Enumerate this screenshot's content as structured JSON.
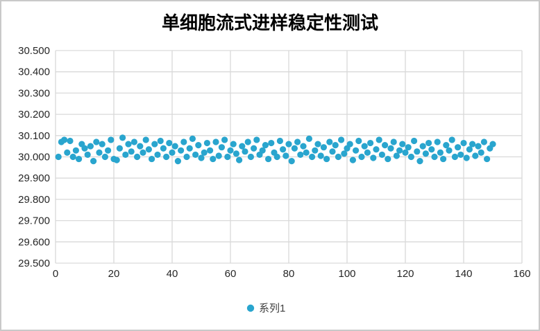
{
  "colors": {
    "point": "#29a5ce",
    "grid": "#d9d9d9",
    "frame_border": "#c9c9c9",
    "tick_text": "#262626",
    "title_text": "#000000",
    "legend_text": "#404040"
  },
  "chart_data": {
    "type": "scatter",
    "title": "单细胞流式进样稳定性测试",
    "xlabel": "",
    "ylabel": "",
    "xlim": [
      0,
      160
    ],
    "ylim": [
      29.5,
      30.5
    ],
    "x_ticks": [
      0,
      20,
      40,
      60,
      80,
      100,
      120,
      140,
      160
    ],
    "y_ticks": [
      29.5,
      29.6,
      29.7,
      29.8,
      29.9,
      30.0,
      30.1,
      30.2,
      30.3,
      30.4,
      30.5
    ],
    "y_tick_labels": [
      "29.500",
      "29.600",
      "29.700",
      "29.800",
      "29.900",
      "30.000",
      "30.100",
      "30.200",
      "30.300",
      "30.400",
      "30.500"
    ],
    "grid": "both",
    "legend_position": "bottom",
    "series": [
      {
        "name": "系列1",
        "x_start": 1,
        "x_step": 1,
        "y": [
          30.0,
          30.07,
          30.08,
          30.02,
          30.075,
          30.0,
          30.03,
          29.99,
          30.06,
          30.04,
          30.01,
          30.05,
          29.98,
          30.07,
          30.02,
          30.06,
          30.0,
          30.03,
          30.08,
          29.99,
          29.985,
          30.04,
          30.09,
          30.01,
          30.06,
          30.025,
          30.07,
          30.0,
          30.05,
          30.02,
          30.08,
          30.035,
          29.99,
          30.06,
          30.01,
          30.075,
          30.04,
          30.0,
          30.065,
          30.02,
          30.05,
          29.98,
          30.03,
          30.07,
          30.0,
          30.04,
          30.085,
          30.01,
          30.055,
          29.995,
          30.02,
          30.065,
          30.03,
          29.99,
          30.07,
          30.005,
          30.045,
          30.08,
          30.0,
          30.03,
          30.06,
          30.015,
          29.985,
          30.05,
          30.025,
          30.07,
          30.0,
          30.04,
          30.08,
          30.01,
          30.03,
          30.055,
          29.99,
          30.065,
          30.02,
          30.0,
          30.075,
          30.035,
          30.005,
          30.06,
          29.98,
          30.04,
          30.07,
          30.01,
          30.05,
          30.02,
          30.085,
          30.0,
          30.03,
          30.06,
          30.005,
          30.045,
          29.99,
          30.07,
          30.025,
          30.055,
          30.0,
          30.08,
          30.015,
          30.04,
          30.06,
          29.985,
          30.03,
          30.075,
          30.0,
          30.05,
          30.02,
          30.065,
          29.995,
          30.035,
          30.08,
          30.01,
          30.055,
          29.99,
          30.04,
          30.07,
          30.005,
          30.03,
          30.06,
          30.02,
          30.045,
          30.0,
          30.075,
          30.025,
          29.98,
          30.05,
          30.015,
          30.065,
          30.035,
          30.0,
          30.07,
          30.02,
          29.99,
          30.055,
          30.03,
          30.08,
          30.0,
          30.045,
          30.01,
          30.065,
          29.995,
          30.035,
          30.06,
          30.005,
          30.05,
          30.02,
          30.07,
          29.99,
          30.04,
          30.06
        ]
      }
    ]
  }
}
